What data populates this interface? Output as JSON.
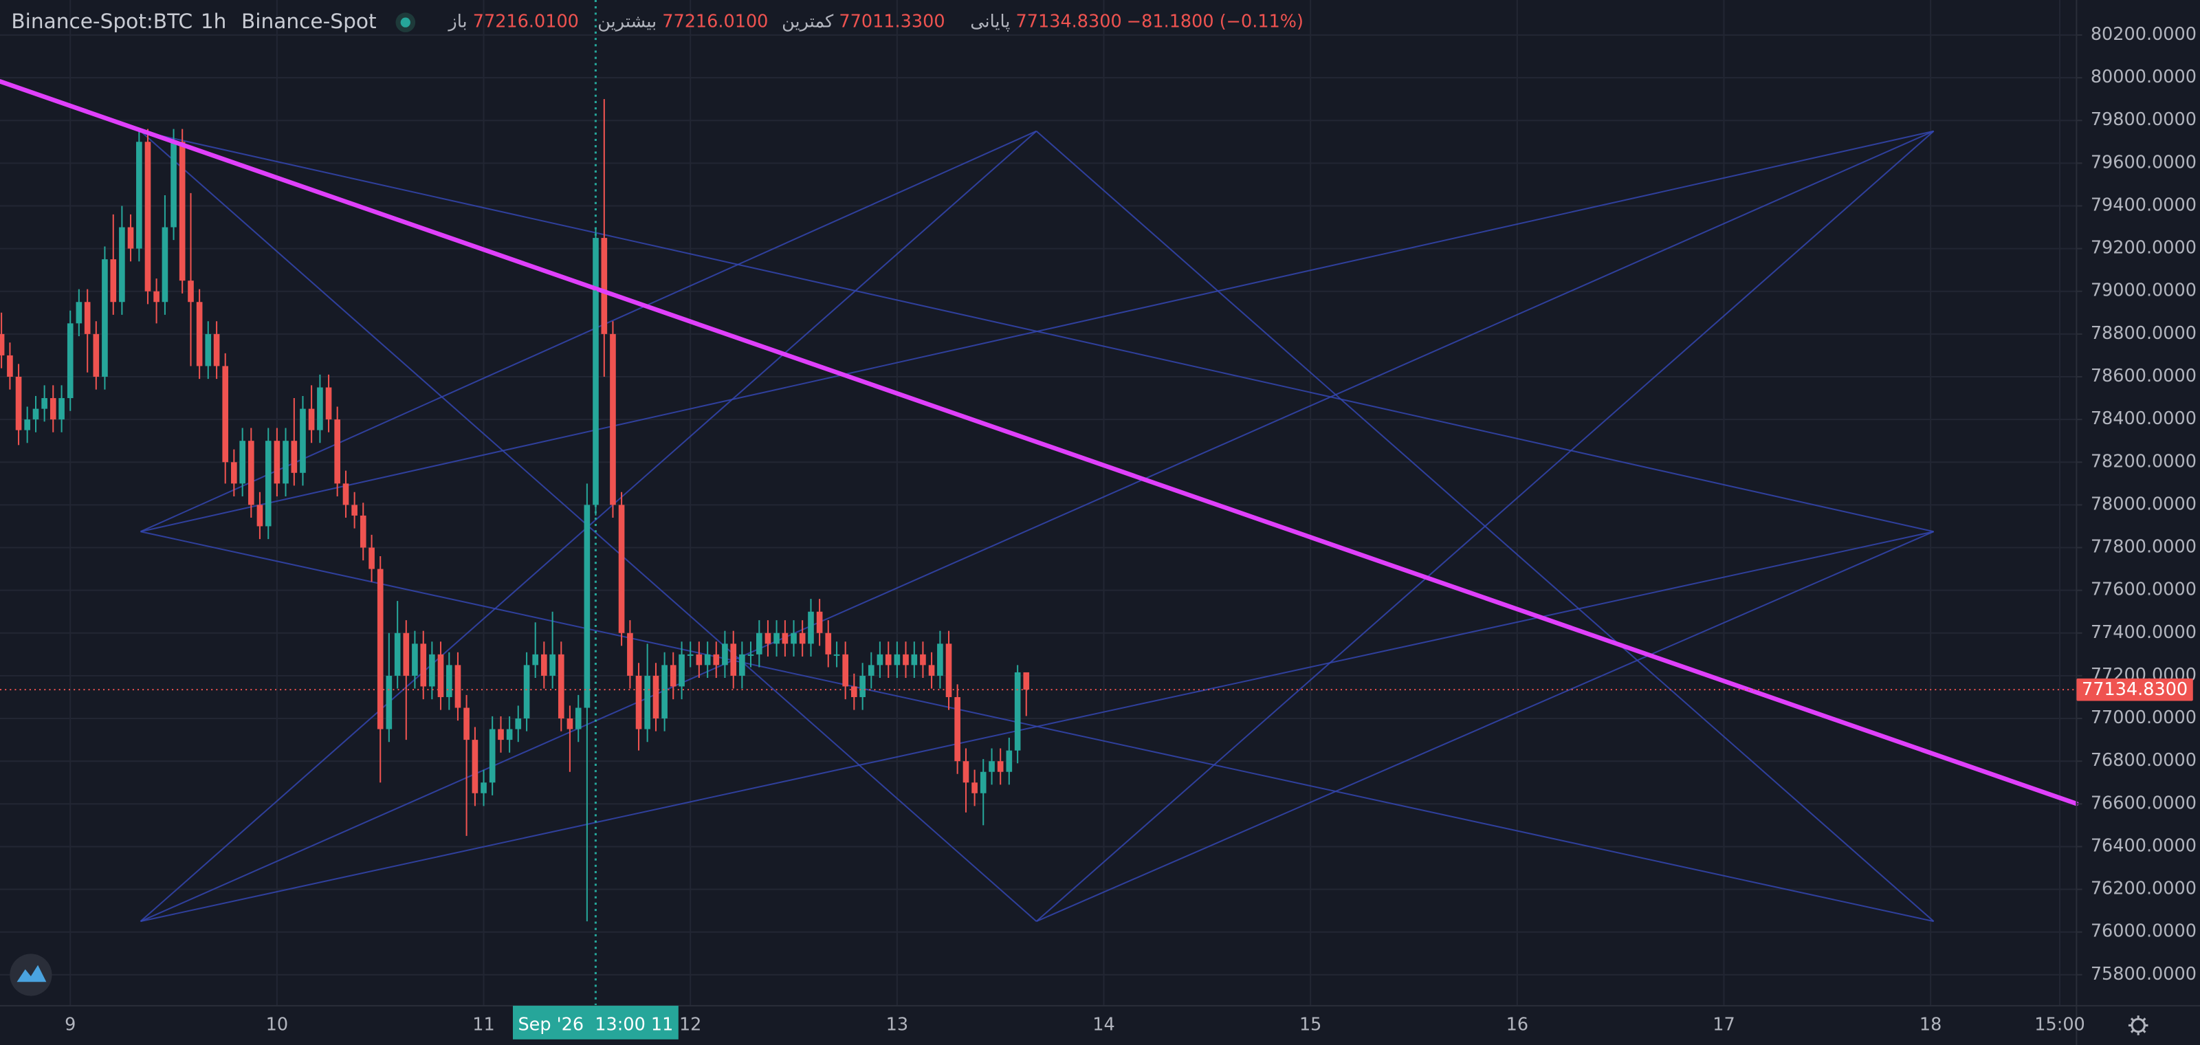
{
  "chart_data": {
    "type": "candlestick",
    "symbol": "Binance-Spot:BTC",
    "interval": "1h",
    "exchange": "Binance-Spot",
    "ohlc_legend": [
      {
        "label": "باز",
        "value": "77216.0100"
      },
      {
        "label": "بیشترین",
        "value": "77216.0100"
      },
      {
        "label": "کمترین",
        "value": "77011.3300"
      },
      {
        "label": "پایانی",
        "value": "77134.8300"
      }
    ],
    "change": "−81.1800 (−0.11%)",
    "up_color": "#26a69a",
    "down_color": "#ef5350",
    "grid": true,
    "xlim": [
      8.66,
      18.706
    ],
    "ylim": [
      75655,
      80364
    ],
    "xticks": [
      9,
      10,
      11,
      12,
      13,
      14,
      15,
      16,
      17,
      18,
      {
        "value": 18.625,
        "label": "15:00"
      }
    ],
    "yticks": [
      {
        "value": 75800,
        "label": "75800.0000"
      },
      {
        "value": 76000,
        "label": "76000.0000"
      },
      {
        "value": 76200,
        "label": "76200.0000"
      },
      {
        "value": 76400,
        "label": "76400.0000"
      },
      {
        "value": 76600,
        "label": "76600.0000"
      },
      {
        "value": 76800,
        "label": "76800.0000"
      },
      {
        "value": 77000,
        "label": "77000.0000"
      },
      {
        "value": 77200,
        "label": "77200.0000"
      },
      {
        "value": 77400,
        "label": "77400.0000"
      },
      {
        "value": 77600,
        "label": "77600.0000"
      },
      {
        "value": 77800,
        "label": "77800.0000"
      },
      {
        "value": 78000,
        "label": "78000.0000"
      },
      {
        "value": 78200,
        "label": "78200.0000"
      },
      {
        "value": 78400,
        "label": "78400.0000"
      },
      {
        "value": 78600,
        "label": "78600.0000"
      },
      {
        "value": 78800,
        "label": "78800.0000"
      },
      {
        "value": 79000,
        "label": "79000.0000"
      },
      {
        "value": 79200,
        "label": "79200.0000"
      },
      {
        "value": 79400,
        "label": "79400.0000"
      },
      {
        "value": 79600,
        "label": "79600.0000"
      },
      {
        "value": 79800,
        "label": "79800.0000"
      },
      {
        "value": 80000,
        "label": "80000.0000"
      },
      {
        "value": 80200,
        "label": "80200.0000"
      }
    ],
    "x": [
      8.667,
      8.708,
      8.75,
      8.792,
      8.833,
      8.875,
      8.917,
      8.958,
      9,
      9.042,
      9.083,
      9.125,
      9.167,
      9.208,
      9.25,
      9.292,
      9.333,
      9.375,
      9.417,
      9.458,
      9.5,
      9.542,
      9.583,
      9.625,
      9.667,
      9.708,
      9.75,
      9.792,
      9.833,
      9.875,
      9.917,
      9.958,
      10,
      10.042,
      10.083,
      10.125,
      10.167,
      10.208,
      10.25,
      10.292,
      10.333,
      10.375,
      10.417,
      10.458,
      10.5,
      10.542,
      10.583,
      10.625,
      10.667,
      10.708,
      10.75,
      10.792,
      10.833,
      10.875,
      10.917,
      10.958,
      11,
      11.042,
      11.083,
      11.125,
      11.167,
      11.208,
      11.25,
      11.292,
      11.333,
      11.375,
      11.417,
      11.458,
      11.5,
      11.542,
      11.583,
      11.625,
      11.667,
      11.708,
      11.75,
      11.792,
      11.833,
      11.875,
      11.917,
      11.958,
      12,
      12.042,
      12.083,
      12.125,
      12.167,
      12.208,
      12.25,
      12.292,
      12.333,
      12.375,
      12.417,
      12.458,
      12.5,
      12.542,
      12.583,
      12.625,
      12.667,
      12.708,
      12.75,
      12.792,
      12.833,
      12.875,
      12.917,
      12.958,
      13,
      13.042,
      13.083,
      13.125,
      13.167,
      13.208,
      13.25,
      13.292,
      13.333,
      13.375,
      13.417,
      13.458,
      13.5,
      13.542,
      13.583,
      13.625
    ],
    "open": [
      78800,
      78700,
      78600,
      78350,
      78400,
      78450,
      78500,
      78400,
      78500,
      78850,
      78950,
      78800,
      78600,
      79150,
      78950,
      79300,
      79200,
      79700,
      79000,
      78950,
      79300,
      79700,
      79050,
      78950,
      78650,
      78800,
      78650,
      78200,
      78100,
      78300,
      78000,
      77900,
      78300,
      78100,
      78300,
      78150,
      78450,
      78350,
      78550,
      78400,
      78100,
      78000,
      77950,
      77800,
      77700,
      76950,
      77200,
      77400,
      77200,
      77350,
      77150,
      77300,
      77100,
      77250,
      77050,
      76900,
      76650,
      76700,
      76950,
      76900,
      76950,
      77000,
      77250,
      77300,
      77200,
      77300,
      77000,
      76950,
      77050,
      78000,
      79250,
      78800,
      78000,
      77400,
      77200,
      76950,
      77200,
      77000,
      77250,
      77150,
      77300,
      77300,
      77250,
      77300,
      77250,
      77350,
      77200,
      77300,
      77300,
      77400,
      77350,
      77400,
      77350,
      77400,
      77350,
      77500,
      77400,
      77300,
      77300,
      77150,
      77100,
      77200,
      77250,
      77300,
      77250,
      77300,
      77250,
      77300,
      77250,
      77200,
      77350,
      77100,
      76800,
      76700,
      76650,
      76750,
      76800,
      76750,
      76850,
      77216.01
    ],
    "high": [
      78900,
      78760,
      78660,
      78460,
      78510,
      78560,
      78560,
      78560,
      78910,
      79010,
      79010,
      78860,
      79210,
      79360,
      79400,
      79360,
      79760,
      79760,
      79060,
      79450,
      79760,
      79760,
      79460,
      79010,
      78860,
      78860,
      78710,
      78260,
      78360,
      78360,
      78060,
      78360,
      78360,
      78360,
      78500,
      78510,
      78560,
      78610,
      78610,
      78460,
      78160,
      78060,
      78010,
      77860,
      77760,
      77400,
      77550,
      77460,
      77410,
      77410,
      77360,
      77360,
      77310,
      77310,
      77110,
      76960,
      76760,
      77010,
      77010,
      77010,
      77060,
      77310,
      77450,
      77360,
      77500,
      77360,
      77060,
      77110,
      78100,
      79300,
      79900,
      78860,
      78060,
      77460,
      77260,
      77350,
      77260,
      77310,
      77310,
      77360,
      77360,
      77360,
      77360,
      77360,
      77410,
      77410,
      77360,
      77360,
      77460,
      77460,
      77460,
      77460,
      77460,
      77460,
      77560,
      77560,
      77460,
      77360,
      77360,
      77210,
      77260,
      77310,
      77360,
      77360,
      77360,
      77360,
      77360,
      77360,
      77310,
      77410,
      77410,
      77160,
      76860,
      76760,
      76810,
      76860,
      76860,
      76910,
      77250,
      77216.01
    ],
    "low": [
      78640,
      78540,
      78280,
      78290,
      78340,
      78390,
      78340,
      78340,
      78440,
      78790,
      78620,
      78540,
      78540,
      78890,
      78890,
      79140,
      79140,
      78940,
      78850,
      78890,
      79240,
      78990,
      78650,
      78590,
      78590,
      78590,
      78100,
      78040,
      78040,
      77940,
      77840,
      77840,
      78040,
      78040,
      78090,
      78090,
      78290,
      78290,
      78340,
      78040,
      77940,
      77890,
      77740,
      77640,
      76700,
      76890,
      77140,
      76900,
      77140,
      77090,
      77090,
      77040,
      77040,
      76990,
      76450,
      76590,
      76590,
      76640,
      76840,
      76840,
      76890,
      76940,
      77190,
      77140,
      77140,
      76940,
      76750,
      76890,
      76050,
      77950,
      78600,
      77940,
      77340,
      77140,
      76850,
      76890,
      76940,
      76940,
      77090,
      77090,
      77240,
      77190,
      77190,
      77190,
      77190,
      77140,
      77140,
      77240,
      77240,
      77290,
      77290,
      77290,
      77290,
      77290,
      77290,
      77340,
      77240,
      77240,
      77090,
      77040,
      77040,
      77140,
      77190,
      77190,
      77190,
      77190,
      77190,
      77190,
      77140,
      77140,
      77040,
      76740,
      76560,
      76590,
      76500,
      76690,
      76690,
      76690,
      76790,
      77011.33
    ],
    "close": [
      78700,
      78600,
      78350,
      78400,
      78450,
      78500,
      78400,
      78500,
      78850,
      78950,
      78800,
      78600,
      79150,
      78950,
      79300,
      79200,
      79700,
      79000,
      78950,
      79300,
      79700,
      79050,
      78950,
      78650,
      78800,
      78650,
      78200,
      78100,
      78300,
      78000,
      77900,
      78300,
      78100,
      78300,
      78150,
      78450,
      78350,
      78550,
      78400,
      78100,
      78000,
      77950,
      77800,
      77700,
      76950,
      77200,
      77400,
      77200,
      77350,
      77150,
      77300,
      77100,
      77250,
      77050,
      76900,
      76650,
      76700,
      76950,
      76900,
      76950,
      77000,
      77250,
      77300,
      77200,
      77300,
      77000,
      76950,
      77050,
      78000,
      79250,
      78800,
      78000,
      77400,
      77200,
      76950,
      77200,
      77000,
      77250,
      77150,
      77300,
      77300,
      77250,
      77300,
      77250,
      77350,
      77200,
      77300,
      77300,
      77400,
      77350,
      77400,
      77350,
      77400,
      77350,
      77500,
      77400,
      77300,
      77300,
      77150,
      77100,
      77200,
      77250,
      77300,
      77250,
      77300,
      77250,
      77300,
      77250,
      77200,
      77350,
      77100,
      76800,
      76700,
      76650,
      76750,
      76800,
      76750,
      76850,
      77216.01,
      77134.83
    ],
    "lines_color": "#3446b0",
    "lines": [
      [
        [
          9.34,
          79750
        ],
        [
          18.015,
          77875
        ]
      ],
      [
        [
          9.34,
          79750
        ],
        [
          13.674,
          76050
        ]
      ],
      [
        [
          9.34,
          77875
        ],
        [
          13.674,
          79750
        ]
      ],
      [
        [
          9.34,
          77875
        ],
        [
          18.015,
          76050
        ]
      ],
      [
        [
          9.34,
          77875
        ],
        [
          18.015,
          79750
        ]
      ],
      [
        [
          9.34,
          76050
        ],
        [
          13.674,
          79750
        ]
      ],
      [
        [
          9.34,
          76050
        ],
        [
          18.015,
          79750
        ]
      ],
      [
        [
          9.34,
          76050
        ],
        [
          18.015,
          77875
        ]
      ],
      [
        [
          13.674,
          79750
        ],
        [
          18.015,
          76050
        ]
      ],
      [
        [
          13.674,
          76050
        ],
        [
          18.015,
          79750
        ]
      ],
      [
        [
          13.674,
          76050
        ],
        [
          18.015,
          77875
        ]
      ]
    ],
    "trendline": {
      "color": "#e040fb",
      "points": [
        [
          8.66,
          79983
        ],
        [
          18.706,
          76601
        ]
      ]
    },
    "last_price": {
      "value": 77134.83,
      "label": "77134.8300"
    },
    "crosshair": {
      "x": 11.5417,
      "label": "Sep '26  13:00 11",
      "color": "#26a69a"
    }
  }
}
